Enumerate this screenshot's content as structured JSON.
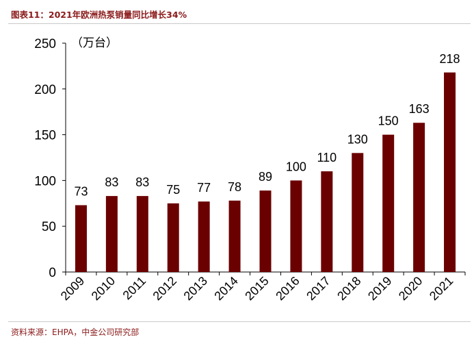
{
  "figure": {
    "title": "图表11：2021年欧洲热泵销量同比增长34%",
    "source": "资料来源：EHPA，中金公司研究部"
  },
  "colors": {
    "bar": "#6B0000",
    "title": "#8B1A1A",
    "axis": "#000000"
  },
  "chart_data": {
    "type": "bar",
    "title": "2021年欧洲热泵销量同比增长34%",
    "unit_label": "（万台）",
    "categories": [
      "2009",
      "2010",
      "2011",
      "2012",
      "2013",
      "2014",
      "2015",
      "2016",
      "2017",
      "2018",
      "2019",
      "2020",
      "2021"
    ],
    "values": [
      73,
      83,
      83,
      75,
      77,
      78,
      89,
      100,
      110,
      130,
      150,
      163,
      218
    ],
    "ylim": [
      0,
      250
    ],
    "yticks": [
      0,
      50,
      100,
      150,
      200,
      250
    ],
    "xlabel": "",
    "ylabel": "",
    "grid": false,
    "legend": "none"
  }
}
